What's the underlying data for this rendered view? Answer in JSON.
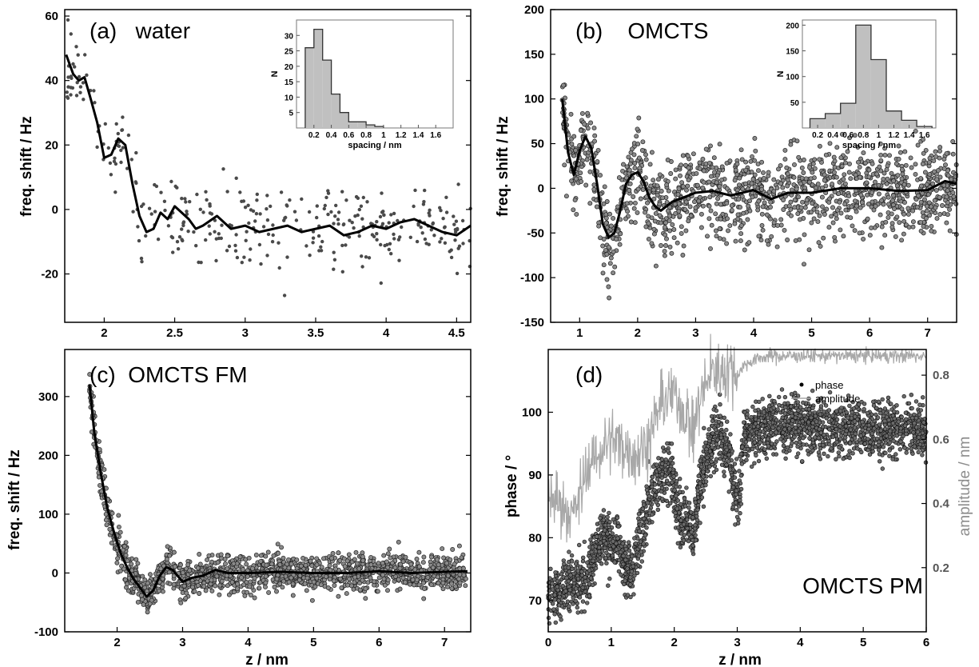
{
  "colors": {
    "points": "#4a4a4a",
    "fit": "#000000",
    "amplitude": "#a8a8a8",
    "hist": "#c0c0c0"
  },
  "chart_data": [
    {
      "type": "scatter",
      "title": "(a)   water",
      "xlabel": "",
      "ylabel": "freq. shift / Hz",
      "xlim": [
        1.72,
        4.6
      ],
      "ylim": [
        -35,
        62
      ],
      "xticks": [
        2,
        2.5,
        3,
        3.5,
        4,
        4.5
      ],
      "yticks": [
        -20,
        0,
        20,
        40,
        60
      ],
      "noise": 7,
      "n_points": 340,
      "series": [
        {
          "role": "fit",
          "x": [
            1.73,
            1.78,
            1.82,
            1.86,
            1.9,
            1.95,
            2,
            2.05,
            2.1,
            2.15,
            2.2,
            2.25,
            2.3,
            2.35,
            2.4,
            2.45,
            2.5,
            2.55,
            2.6,
            2.65,
            2.7,
            2.8,
            2.9,
            3,
            3.1,
            3.2,
            3.3,
            3.4,
            3.5,
            3.6,
            3.7,
            3.8,
            3.9,
            4,
            4.1,
            4.2,
            4.3,
            4.4,
            4.5,
            4.6
          ],
          "y": [
            48,
            42,
            40,
            41,
            35,
            27,
            16,
            17,
            22,
            20,
            8,
            -2,
            -7,
            -6,
            -1,
            -3,
            1,
            -1,
            -3,
            -6,
            -5,
            -2,
            -6,
            -5,
            -7,
            -6,
            -5,
            -7,
            -6,
            -5,
            -8,
            -7,
            -5,
            -6,
            -4,
            -3,
            -5,
            -7,
            -8,
            -5
          ]
        }
      ],
      "inset": {
        "type": "bar",
        "xlabel": "spacing / nm",
        "ylabel": "N",
        "xlim": [
          0,
          1.8
        ],
        "ylim": [
          0,
          35
        ],
        "xticks": [
          0.2,
          0.4,
          0.6,
          0.8,
          1,
          1.2,
          1.4,
          1.6
        ],
        "yticks": [
          5,
          10,
          15,
          20,
          25,
          30
        ],
        "bins": [
          [
            0.1,
            0.2,
            26
          ],
          [
            0.2,
            0.3,
            32
          ],
          [
            0.3,
            0.4,
            22
          ],
          [
            0.4,
            0.5,
            11
          ],
          [
            0.5,
            0.6,
            5
          ],
          [
            0.6,
            0.7,
            2
          ],
          [
            0.7,
            0.8,
            2
          ],
          [
            0.8,
            0.9,
            1
          ],
          [
            0.9,
            1.0,
            0.5
          ]
        ]
      }
    },
    {
      "type": "scatter",
      "title": "(b)    OMCTS",
      "xlabel": "",
      "ylabel": "freq. shift / Hz",
      "xlim": [
        0.5,
        7.5
      ],
      "ylim": [
        -150,
        200
      ],
      "xticks": [
        1,
        2,
        3,
        4,
        5,
        6,
        7
      ],
      "yticks": [
        -150,
        -100,
        -50,
        0,
        50,
        100,
        150,
        200
      ],
      "noise": 25,
      "n_points": 1400,
      "series": [
        {
          "role": "fit",
          "x": [
            0.7,
            0.8,
            0.9,
            1,
            1.1,
            1.2,
            1.3,
            1.4,
            1.5,
            1.6,
            1.7,
            1.8,
            1.9,
            2,
            2.1,
            2.2,
            2.3,
            2.4,
            2.5,
            2.6,
            2.8,
            3,
            3.3,
            3.6,
            4,
            4.3,
            4.6,
            5,
            5.5,
            6,
            6.5,
            7,
            7.3,
            7.5
          ],
          "y": [
            100,
            40,
            15,
            42,
            58,
            45,
            5,
            -40,
            -55,
            -50,
            -25,
            5,
            15,
            18,
            8,
            -10,
            -20,
            -25,
            -20,
            -15,
            -10,
            -5,
            -3,
            -8,
            -2,
            -12,
            -5,
            -5,
            0,
            0,
            -3,
            -2,
            8,
            5
          ]
        }
      ],
      "inset": {
        "type": "bar",
        "xlabel": "spacing / nm",
        "ylabel": "N",
        "xlim": [
          0,
          1.75
        ],
        "ylim": [
          0,
          210
        ],
        "xticks": [
          0.2,
          0.4,
          0.6,
          0.8,
          1,
          1.2,
          1.4,
          1.6
        ],
        "yticks": [
          50,
          100,
          150,
          200
        ],
        "bins": [
          [
            0.1,
            0.3,
            18
          ],
          [
            0.3,
            0.5,
            28
          ],
          [
            0.5,
            0.7,
            48
          ],
          [
            0.7,
            0.9,
            200
          ],
          [
            0.9,
            1.1,
            133
          ],
          [
            1.1,
            1.3,
            33
          ],
          [
            1.3,
            1.5,
            15
          ],
          [
            1.5,
            1.7,
            3
          ]
        ]
      }
    },
    {
      "type": "scatter",
      "title": "(c)  OMCTS FM",
      "xlabel": "z / nm",
      "ylabel": "freq. shift / Hz",
      "xlim": [
        1.2,
        7.4
      ],
      "ylim": [
        -100,
        380
      ],
      "xticks": [
        2,
        3,
        4,
        5,
        6,
        7
      ],
      "yticks": [
        -100,
        0,
        100,
        200,
        300
      ],
      "noise": 15,
      "n_points": 1500,
      "series": [
        {
          "role": "fit",
          "x": [
            1.58,
            1.65,
            1.75,
            1.85,
            1.95,
            2.05,
            2.15,
            2.25,
            2.35,
            2.45,
            2.55,
            2.65,
            2.75,
            2.85,
            3,
            3.15,
            3.3,
            3.5,
            3.7,
            4,
            4.5,
            5,
            5.5,
            6,
            6.5,
            7,
            7.35
          ],
          "y": [
            320,
            240,
            170,
            110,
            70,
            35,
            10,
            -10,
            -25,
            -40,
            -30,
            -5,
            10,
            5,
            -15,
            -8,
            -5,
            5,
            0,
            0,
            2,
            0,
            0,
            3,
            0,
            2,
            3
          ]
        }
      ]
    },
    {
      "type": "scatter",
      "title": "(d)",
      "annotation": "OMCTS PM",
      "xlabel": "z / nm",
      "ylabel": "phase / °",
      "y2label": "amplitude / nm",
      "xlim": [
        0,
        6
      ],
      "ylim": [
        65,
        110
      ],
      "y2lim": [
        0,
        0.88
      ],
      "xticks": [
        0,
        1,
        2,
        3,
        4,
        5,
        6
      ],
      "yticks": [
        70,
        80,
        90,
        100
      ],
      "y2ticks": [
        0.2,
        0.4,
        0.6,
        0.8
      ],
      "legend": [
        "phase",
        "amplitude"
      ],
      "legend_position": "top-right",
      "series": [
        {
          "name": "phase",
          "x": [
            0,
            0.3,
            0.5,
            0.6,
            0.75,
            0.85,
            1,
            1.1,
            1.2,
            1.3,
            1.4,
            1.5,
            1.6,
            1.7,
            1.8,
            1.9,
            2,
            2.1,
            2.2,
            2.3,
            2.4,
            2.5,
            2.6,
            2.7,
            2.8,
            2.9,
            3,
            3.05,
            3.1,
            3.2,
            3.5,
            4,
            4.5,
            5,
            5.5,
            6
          ],
          "y": [
            71,
            72,
            73,
            73,
            78,
            80,
            79,
            80,
            76,
            74,
            78,
            82,
            86,
            88,
            90,
            91,
            88,
            83,
            83,
            80,
            88,
            92,
            96,
            97,
            95,
            91,
            85,
            87,
            96,
            97,
            98,
            98,
            97.5,
            97.5,
            97.5,
            97
          ],
          "noise": 2.2,
          "n_points": 2500
        },
        {
          "name": "amplitude",
          "x": [
            0,
            0.2,
            0.4,
            0.5,
            0.6,
            0.8,
            1,
            1.2,
            1.4,
            1.6,
            1.8,
            2,
            2.2,
            2.3,
            2.4,
            2.6,
            2.7,
            2.9,
            3,
            3.1,
            3.3,
            3.5,
            4,
            5,
            6
          ],
          "y": [
            0.43,
            0.4,
            0.36,
            0.42,
            0.5,
            0.56,
            0.6,
            0.58,
            0.55,
            0.6,
            0.72,
            0.74,
            0.67,
            0.62,
            0.72,
            0.82,
            0.81,
            0.82,
            0.8,
            0.83,
            0.85,
            0.86,
            0.86,
            0.86,
            0.86
          ],
          "noise": 0.03,
          "n_points": 800
        }
      ]
    }
  ]
}
